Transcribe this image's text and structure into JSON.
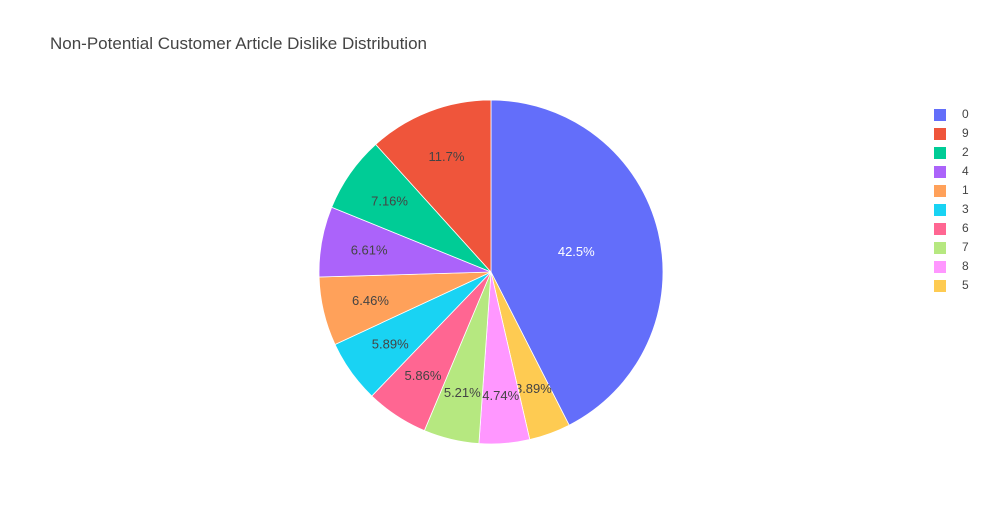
{
  "chart_data": {
    "type": "pie",
    "title": "Non-Potential Customer Article Dislike Distribution",
    "slices": [
      {
        "label": "0",
        "value": 42.5,
        "text": "42.5%",
        "color": "#636efa"
      },
      {
        "label": "5",
        "value": 3.89,
        "text": "3.89%",
        "color": "#fecb52"
      },
      {
        "label": "8",
        "value": 4.74,
        "text": "4.74%",
        "color": "#ff97ff"
      },
      {
        "label": "7",
        "value": 5.21,
        "text": "5.21%",
        "color": "#b6e880"
      },
      {
        "label": "6",
        "value": 5.86,
        "text": "5.86%",
        "color": "#ff6692"
      },
      {
        "label": "3",
        "value": 5.89,
        "text": "5.89%",
        "color": "#19d3f3"
      },
      {
        "label": "1",
        "value": 6.46,
        "text": "6.46%",
        "color": "#ffa15a"
      },
      {
        "label": "4",
        "value": 6.61,
        "text": "6.61%",
        "color": "#ab63fa"
      },
      {
        "label": "2",
        "value": 7.16,
        "text": "7.16%",
        "color": "#00cc96"
      },
      {
        "label": "9",
        "value": 11.7,
        "text": "11.7%",
        "color": "#ef553b"
      }
    ],
    "legend": {
      "placement": "right",
      "order": [
        "0",
        "9",
        "2",
        "4",
        "1",
        "3",
        "6",
        "7",
        "8",
        "5"
      ]
    }
  }
}
